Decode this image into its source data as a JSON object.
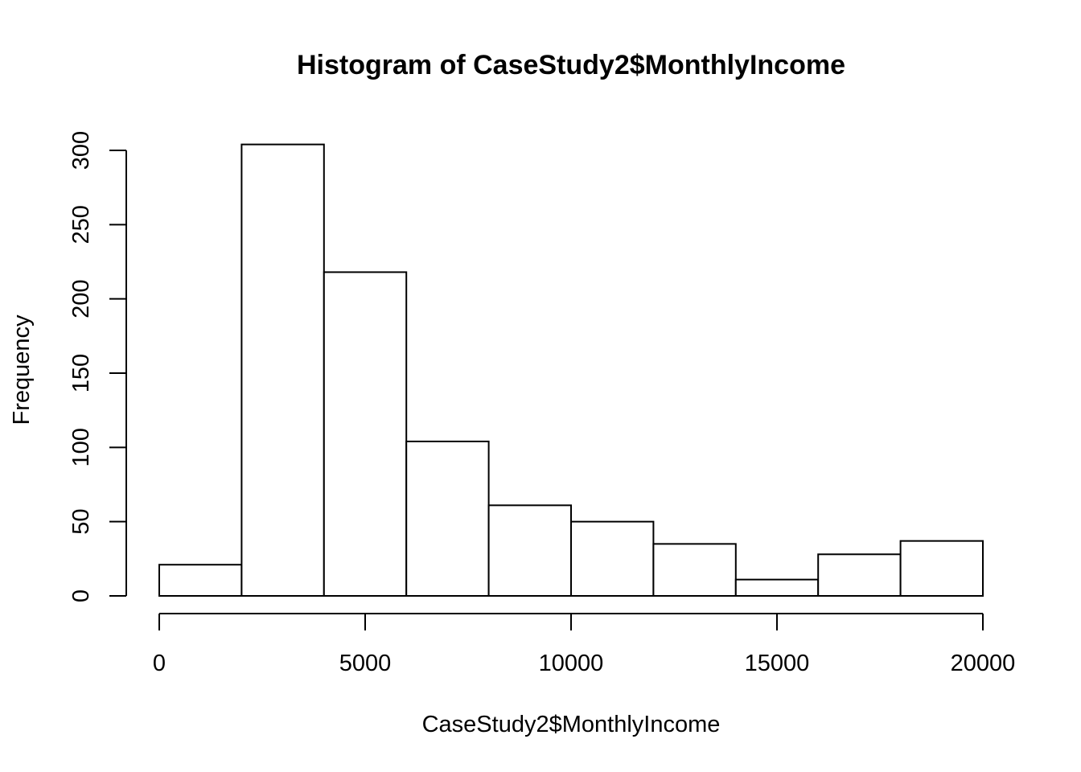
{
  "chart_data": {
    "type": "bar",
    "title": "Histogram of CaseStudy2$MonthlyIncome",
    "xlabel": "CaseStudy2$MonthlyIncome",
    "ylabel": "Frequency",
    "bin_edges": [
      0,
      2000,
      4000,
      6000,
      8000,
      10000,
      12000,
      14000,
      16000,
      18000,
      20000
    ],
    "values": [
      21,
      304,
      218,
      104,
      61,
      50,
      35,
      11,
      28,
      37
    ],
    "xticks": [
      0,
      5000,
      10000,
      15000,
      20000
    ],
    "xtick_labels": [
      "0",
      "5000",
      "10000",
      "15000",
      "20000"
    ],
    "yticks": [
      0,
      50,
      100,
      150,
      200,
      250,
      300
    ],
    "ytick_labels": [
      "0",
      "50",
      "100",
      "150",
      "200",
      "250",
      "300"
    ],
    "xlim": [
      0,
      20000
    ],
    "ylim": [
      0,
      300
    ],
    "grid": false,
    "legend": "none",
    "colors": {
      "bar_fill": "#ffffff",
      "bar_stroke": "#000000",
      "axis": "#000000"
    }
  }
}
